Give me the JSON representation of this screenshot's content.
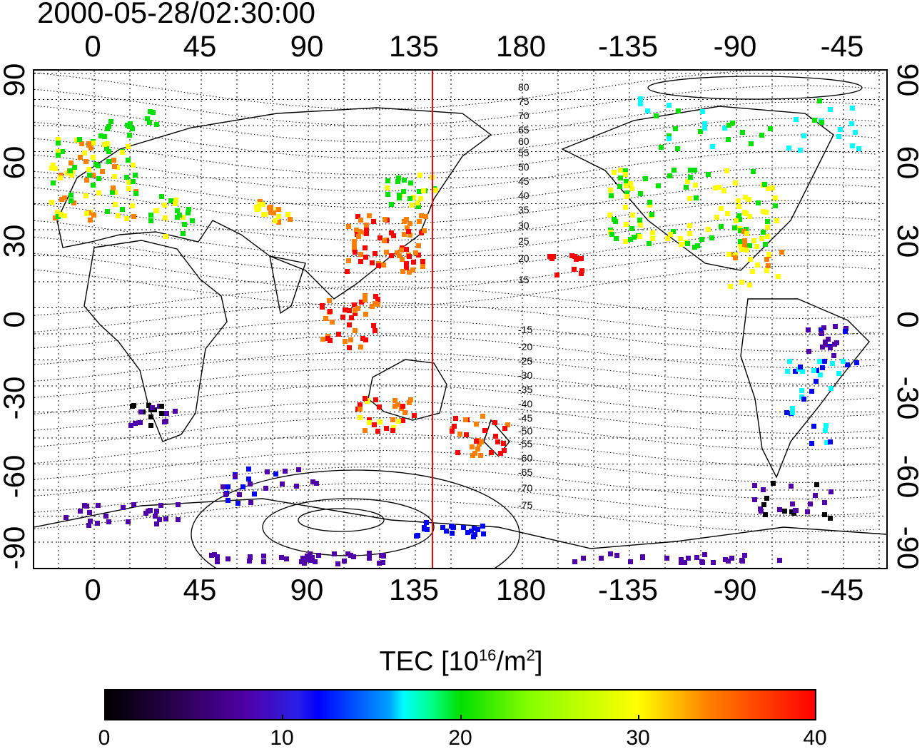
{
  "title": "2000-05-28/02:30:00",
  "map": {
    "projection": "equirectangular",
    "lon_ticks": [
      "0",
      "45",
      "90",
      "135",
      "180",
      "-135",
      "-90",
      "-45"
    ],
    "lat_ticks": [
      "90",
      "60",
      "30",
      "0",
      "-30",
      "-60",
      "-90"
    ],
    "reference_meridian_color": "#ff0000",
    "contour_labels": [
      "80",
      "75",
      "70",
      "65",
      "60",
      "55",
      "50",
      "45",
      "40",
      "35",
      "30",
      "25",
      "20",
      "15",
      "-15",
      "-20",
      "-25",
      "-30",
      "-35",
      "-40",
      "-45",
      "-50",
      "-55",
      "-60",
      "-65",
      "-70",
      "-75"
    ]
  },
  "colorbar": {
    "title_main": "TEC  [10",
    "title_sup1": "16",
    "title_mid": "/m",
    "title_sup2": "2",
    "title_end": "]",
    "ticks": [
      "0",
      "10",
      "20",
      "30",
      "40"
    ],
    "colors": [
      "#000000",
      "#5000a8",
      "#0000ff",
      "#00ffff",
      "#00e000",
      "#ffff00",
      "#ff8000",
      "#ff0000"
    ]
  }
}
